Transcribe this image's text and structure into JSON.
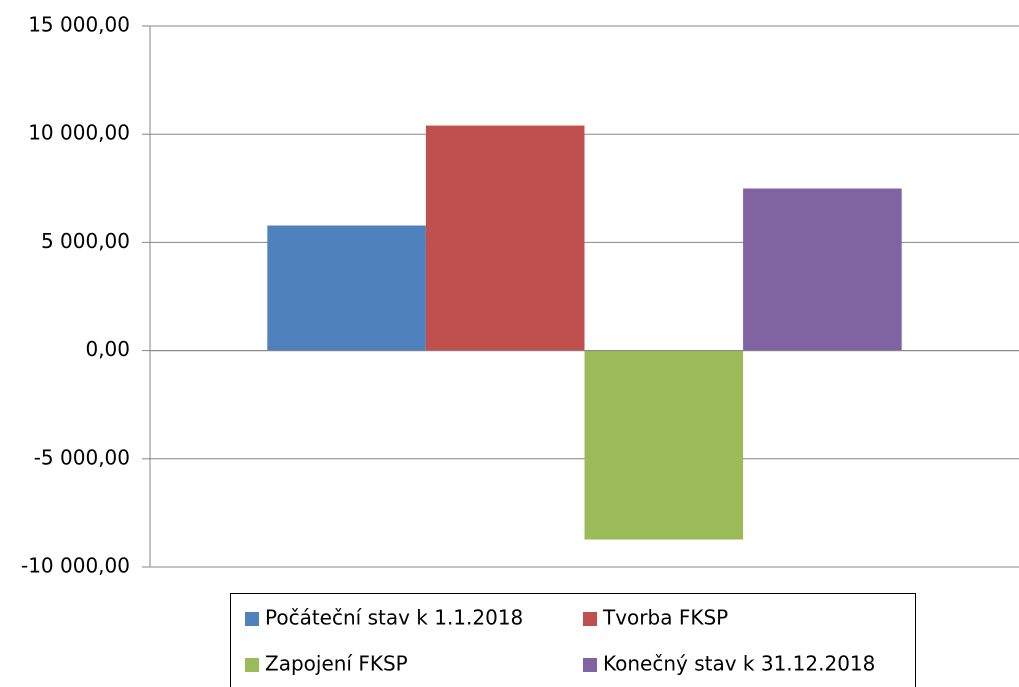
{
  "chart_data": {
    "type": "bar",
    "categories": [
      null
    ],
    "series": [
      {
        "name": "Počáteční stav k 1.1.2018",
        "color": "#4f81bd",
        "values": [
          5780
        ]
      },
      {
        "name": "Tvorba FKSP",
        "color": "#c0504d",
        "values": [
          10400
        ]
      },
      {
        "name": "Zapojení FKSP",
        "color": "#9bbb59",
        "values": [
          -8730
        ]
      },
      {
        "name": "Konečný stav k 31.12.2018",
        "color": "#8064a2",
        "values": [
          7490
        ]
      }
    ],
    "ylim": [
      -10000,
      15000
    ],
    "yticks": [
      {
        "value": -10000,
        "label": "-10 000,00"
      },
      {
        "value": -5000,
        "label": "-5 000,00"
      },
      {
        "value": 0,
        "label": "0,00"
      },
      {
        "value": 5000,
        "label": "5 000,00"
      },
      {
        "value": 10000,
        "label": "10 000,00"
      },
      {
        "value": 15000,
        "label": "15 000,00"
      }
    ],
    "grid": true,
    "legend": "bottom"
  }
}
